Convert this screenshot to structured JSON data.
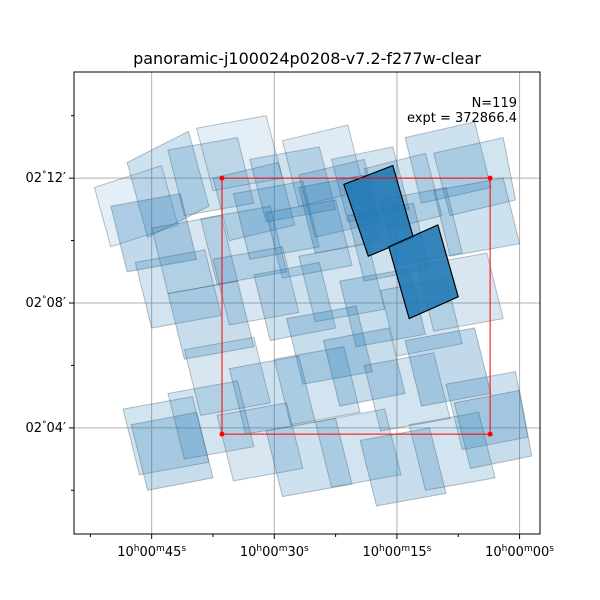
{
  "chart_data": {
    "type": "footprint",
    "title": "panoramic-j100024p0208-v7.2-f277w-clear",
    "annotation_lines": [
      "N=119",
      "expt = 372866.4"
    ],
    "grid": true,
    "x_ticks": [
      {
        "h": "10",
        "m": "00",
        "s": "45",
        "ra_sec": 45
      },
      {
        "h": "10",
        "m": "00",
        "s": "30",
        "ra_sec": 30
      },
      {
        "h": "10",
        "m": "00",
        "s": "15",
        "ra_sec": 15
      },
      {
        "h": "10",
        "m": "00",
        "s": "00",
        "ra_sec": 0
      }
    ],
    "y_ticks": [
      {
        "label": "02$^\\circ$04′",
        "deg": "02",
        "min": "04",
        "dec_arcmin": 4
      },
      {
        "label": "02$^\\circ$08′",
        "deg": "02",
        "min": "08",
        "dec_arcmin": 8
      },
      {
        "label": "02$^\\circ$12′",
        "deg": "02",
        "min": "12",
        "dec_arcmin": 12
      }
    ],
    "xlim_ra_sec": [
      54.5,
      -2.5
    ],
    "ylim_dec_arcmin": [
      0.6,
      15.4
    ],
    "exposures_fill_color": "#1f77b4",
    "highlight_edge_color": "#000000",
    "box_color": "#ff0000",
    "box_corners": [
      [
        36.4,
        12.0
      ],
      [
        3.6,
        12.0
      ],
      [
        3.6,
        3.8
      ],
      [
        36.4,
        3.8
      ]
    ],
    "exposures": [
      {
        "corners": [
          [
            52.0,
            11.7
          ],
          [
            43.8,
            12.4
          ],
          [
            41.8,
            10.5
          ],
          [
            50.0,
            9.8
          ]
        ],
        "opacity": 0.12,
        "highlight": false
      },
      {
        "corners": [
          [
            48.0,
            12.5
          ],
          [
            40.5,
            13.5
          ],
          [
            38.0,
            11.1
          ],
          [
            45.5,
            10.1
          ]
        ],
        "opacity": 0.22,
        "highlight": false
      },
      {
        "corners": [
          [
            43.0,
            12.9
          ],
          [
            34.5,
            13.3
          ],
          [
            32.5,
            11.2
          ],
          [
            41.0,
            10.8
          ]
        ],
        "opacity": 0.2,
        "highlight": false
      },
      {
        "corners": [
          [
            39.5,
            13.6
          ],
          [
            31.0,
            14.0
          ],
          [
            29.0,
            12.0
          ],
          [
            37.5,
            11.6
          ]
        ],
        "opacity": 0.12,
        "highlight": false
      },
      {
        "corners": [
          [
            37.5,
            12.0
          ],
          [
            29.5,
            12.5
          ],
          [
            27.5,
            10.5
          ],
          [
            35.5,
            10.0
          ]
        ],
        "opacity": 0.2,
        "highlight": false
      },
      {
        "corners": [
          [
            33.0,
            12.6
          ],
          [
            24.5,
            13.0
          ],
          [
            22.5,
            11.0
          ],
          [
            31.0,
            10.6
          ]
        ],
        "opacity": 0.22,
        "highlight": false
      },
      {
        "corners": [
          [
            29.0,
            13.2
          ],
          [
            21.0,
            13.7
          ],
          [
            19.0,
            11.6
          ],
          [
            27.0,
            11.1
          ]
        ],
        "opacity": 0.15,
        "highlight": false
      },
      {
        "corners": [
          [
            27.0,
            12.1
          ],
          [
            19.0,
            12.6
          ],
          [
            17.0,
            10.6
          ],
          [
            25.0,
            10.1
          ]
        ],
        "opacity": 0.22,
        "highlight": false
      },
      {
        "corners": [
          [
            23.0,
            12.6
          ],
          [
            15.5,
            13.0
          ],
          [
            13.5,
            11.0
          ],
          [
            21.0,
            10.6
          ]
        ],
        "opacity": 0.2,
        "highlight": false
      },
      {
        "corners": [
          [
            19.0,
            12.3
          ],
          [
            11.5,
            12.8
          ],
          [
            9.5,
            10.8
          ],
          [
            17.0,
            10.3
          ]
        ],
        "opacity": 0.2,
        "highlight": false
      },
      {
        "corners": [
          [
            14.0,
            13.3
          ],
          [
            5.5,
            13.8
          ],
          [
            3.5,
            11.7
          ],
          [
            12.0,
            11.2
          ]
        ],
        "opacity": 0.22,
        "highlight": false
      },
      {
        "corners": [
          [
            10.5,
            12.8
          ],
          [
            2.0,
            13.3
          ],
          [
            0.5,
            11.3
          ],
          [
            8.5,
            10.8
          ]
        ],
        "opacity": 0.2,
        "highlight": false
      },
      {
        "corners": [
          [
            50.0,
            11.1
          ],
          [
            41.5,
            11.5
          ],
          [
            39.5,
            9.4
          ],
          [
            48.0,
            9.0
          ]
        ],
        "opacity": 0.28,
        "highlight": false
      },
      {
        "corners": [
          [
            45.0,
            10.4
          ],
          [
            36.5,
            10.8
          ],
          [
            34.5,
            8.7
          ],
          [
            43.0,
            8.3
          ]
        ],
        "opacity": 0.18,
        "highlight": false
      },
      {
        "corners": [
          [
            39.0,
            10.7
          ],
          [
            30.5,
            11.1
          ],
          [
            28.5,
            9.0
          ],
          [
            37.0,
            8.6
          ]
        ],
        "opacity": 0.2,
        "highlight": false
      },
      {
        "corners": [
          [
            35.0,
            11.5
          ],
          [
            26.5,
            11.9
          ],
          [
            24.5,
            9.8
          ],
          [
            33.0,
            9.4
          ]
        ],
        "opacity": 0.22,
        "highlight": false
      },
      {
        "corners": [
          [
            31.0,
            10.9
          ],
          [
            22.5,
            11.3
          ],
          [
            20.5,
            9.2
          ],
          [
            29.0,
            8.8
          ]
        ],
        "opacity": 0.2,
        "highlight": false
      },
      {
        "corners": [
          [
            27.0,
            11.7
          ],
          [
            19.0,
            12.1
          ],
          [
            17.0,
            10.0
          ],
          [
            25.0,
            9.6
          ]
        ],
        "opacity": 0.28,
        "highlight": false
      },
      {
        "corners": [
          [
            21.0,
            10.8
          ],
          [
            13.0,
            11.2
          ],
          [
            11.0,
            9.1
          ],
          [
            19.0,
            8.7
          ]
        ],
        "opacity": 0.22,
        "highlight": false
      },
      {
        "corners": [
          [
            17.0,
            11.3
          ],
          [
            9.0,
            11.7
          ],
          [
            7.0,
            9.6
          ],
          [
            15.0,
            9.2
          ]
        ],
        "opacity": 0.2,
        "highlight": false
      },
      {
        "corners": [
          [
            10.5,
            11.6
          ],
          [
            2.0,
            12.0
          ],
          [
            0.0,
            9.9
          ],
          [
            8.5,
            9.5
          ]
        ],
        "opacity": 0.22,
        "highlight": false
      },
      {
        "corners": [
          [
            47.0,
            9.3
          ],
          [
            38.5,
            9.7
          ],
          [
            36.5,
            7.6
          ],
          [
            45.0,
            7.2
          ]
        ],
        "opacity": 0.2,
        "highlight": false
      },
      {
        "corners": [
          [
            43.0,
            8.3
          ],
          [
            34.5,
            8.7
          ],
          [
            32.5,
            6.6
          ],
          [
            41.0,
            6.2
          ]
        ],
        "opacity": 0.25,
        "highlight": false
      },
      {
        "corners": [
          [
            37.5,
            9.4
          ],
          [
            29.0,
            9.8
          ],
          [
            27.0,
            7.7
          ],
          [
            35.5,
            7.3
          ]
        ],
        "opacity": 0.18,
        "highlight": false
      },
      {
        "corners": [
          [
            32.5,
            8.9
          ],
          [
            24.5,
            9.3
          ],
          [
            22.5,
            7.2
          ],
          [
            30.5,
            6.8
          ]
        ],
        "opacity": 0.22,
        "highlight": false
      },
      {
        "corners": [
          [
            27.0,
            9.5
          ],
          [
            18.5,
            9.9
          ],
          [
            16.5,
            7.8
          ],
          [
            25.0,
            7.4
          ]
        ],
        "opacity": 0.2,
        "highlight": false
      },
      {
        "corners": [
          [
            22.0,
            8.7
          ],
          [
            13.5,
            9.1
          ],
          [
            11.5,
            7.0
          ],
          [
            20.0,
            6.6
          ]
        ],
        "opacity": 0.25,
        "highlight": false
      },
      {
        "corners": [
          [
            17.0,
            8.4
          ],
          [
            9.0,
            8.8
          ],
          [
            7.0,
            6.7
          ],
          [
            15.0,
            6.3
          ]
        ],
        "opacity": 0.2,
        "highlight": false
      },
      {
        "corners": [
          [
            12.5,
            9.2
          ],
          [
            4.0,
            9.6
          ],
          [
            2.0,
            7.5
          ],
          [
            10.5,
            7.1
          ]
        ],
        "opacity": 0.18,
        "highlight": false
      },
      {
        "corners": [
          [
            28.5,
            7.5
          ],
          [
            20.0,
            7.9
          ],
          [
            18.0,
            5.8
          ],
          [
            26.5,
            5.4
          ]
        ],
        "opacity": 0.25,
        "highlight": false
      },
      {
        "corners": [
          [
            41.0,
            6.5
          ],
          [
            32.5,
            6.9
          ],
          [
            30.5,
            4.8
          ],
          [
            39.0,
            4.4
          ]
        ],
        "opacity": 0.18,
        "highlight": false
      },
      {
        "corners": [
          [
            35.5,
            5.9
          ],
          [
            27.0,
            6.3
          ],
          [
            25.0,
            4.2
          ],
          [
            33.5,
            3.8
          ]
        ],
        "opacity": 0.22,
        "highlight": false
      },
      {
        "corners": [
          [
            30.0,
            6.2
          ],
          [
            21.5,
            6.6
          ],
          [
            19.5,
            4.5
          ],
          [
            28.0,
            4.1
          ]
        ],
        "opacity": 0.2,
        "highlight": false
      },
      {
        "corners": [
          [
            24.0,
            6.8
          ],
          [
            16.0,
            7.2
          ],
          [
            14.0,
            5.1
          ],
          [
            22.0,
            4.7
          ]
        ],
        "opacity": 0.25,
        "highlight": false
      },
      {
        "corners": [
          [
            19.0,
            6.0
          ],
          [
            10.5,
            6.4
          ],
          [
            8.5,
            4.3
          ],
          [
            17.0,
            3.9
          ]
        ],
        "opacity": 0.2,
        "highlight": false
      },
      {
        "corners": [
          [
            14.0,
            6.8
          ],
          [
            5.5,
            7.2
          ],
          [
            3.5,
            5.1
          ],
          [
            12.0,
            4.7
          ]
        ],
        "opacity": 0.28,
        "highlight": false
      },
      {
        "corners": [
          [
            9.0,
            5.4
          ],
          [
            0.5,
            5.8
          ],
          [
            -1.0,
            3.7
          ],
          [
            7.0,
            3.3
          ]
        ],
        "opacity": 0.22,
        "highlight": false
      },
      {
        "corners": [
          [
            48.5,
            4.6
          ],
          [
            40.0,
            5.0
          ],
          [
            38.0,
            2.9
          ],
          [
            46.5,
            2.5
          ]
        ],
        "opacity": 0.2,
        "highlight": false
      },
      {
        "corners": [
          [
            47.5,
            4.1
          ],
          [
            39.5,
            4.5
          ],
          [
            37.5,
            2.4
          ],
          [
            45.5,
            2.0
          ]
        ],
        "opacity": 0.25,
        "highlight": false
      },
      {
        "corners": [
          [
            43.0,
            5.1
          ],
          [
            34.5,
            5.5
          ],
          [
            32.5,
            3.4
          ],
          [
            41.0,
            3.0
          ]
        ],
        "opacity": 0.2,
        "highlight": false
      },
      {
        "corners": [
          [
            37.0,
            4.4
          ],
          [
            28.5,
            4.8
          ],
          [
            26.5,
            2.7
          ],
          [
            35.0,
            2.3
          ]
        ],
        "opacity": 0.18,
        "highlight": false
      },
      {
        "corners": [
          [
            31.0,
            3.9
          ],
          [
            22.5,
            4.3
          ],
          [
            20.5,
            2.2
          ],
          [
            29.0,
            1.8
          ]
        ],
        "opacity": 0.22,
        "highlight": false
      },
      {
        "corners": [
          [
            25.0,
            4.2
          ],
          [
            16.5,
            4.6
          ],
          [
            14.5,
            2.5
          ],
          [
            23.0,
            2.1
          ]
        ],
        "opacity": 0.2,
        "highlight": false
      },
      {
        "corners": [
          [
            19.5,
            3.6
          ],
          [
            11.0,
            4.0
          ],
          [
            9.0,
            1.9
          ],
          [
            17.5,
            1.5
          ]
        ],
        "opacity": 0.25,
        "highlight": false
      },
      {
        "corners": [
          [
            13.5,
            4.1
          ],
          [
            5.0,
            4.5
          ],
          [
            3.0,
            2.4
          ],
          [
            11.5,
            2.0
          ]
        ],
        "opacity": 0.2,
        "highlight": false
      },
      {
        "corners": [
          [
            8.0,
            4.8
          ],
          [
            0.0,
            5.2
          ],
          [
            -1.5,
            3.1
          ],
          [
            6.0,
            2.7
          ]
        ],
        "opacity": 0.25,
        "highlight": false
      },
      {
        "corners": [
          [
            21.5,
            11.8
          ],
          [
            15.5,
            12.4
          ],
          [
            13.0,
            10.1
          ],
          [
            18.5,
            9.5
          ]
        ],
        "opacity": 0.88,
        "highlight": true
      },
      {
        "corners": [
          [
            16.0,
            9.8
          ],
          [
            10.0,
            10.5
          ],
          [
            7.5,
            8.2
          ],
          [
            13.5,
            7.5
          ]
        ],
        "opacity": 0.88,
        "highlight": true
      }
    ]
  }
}
